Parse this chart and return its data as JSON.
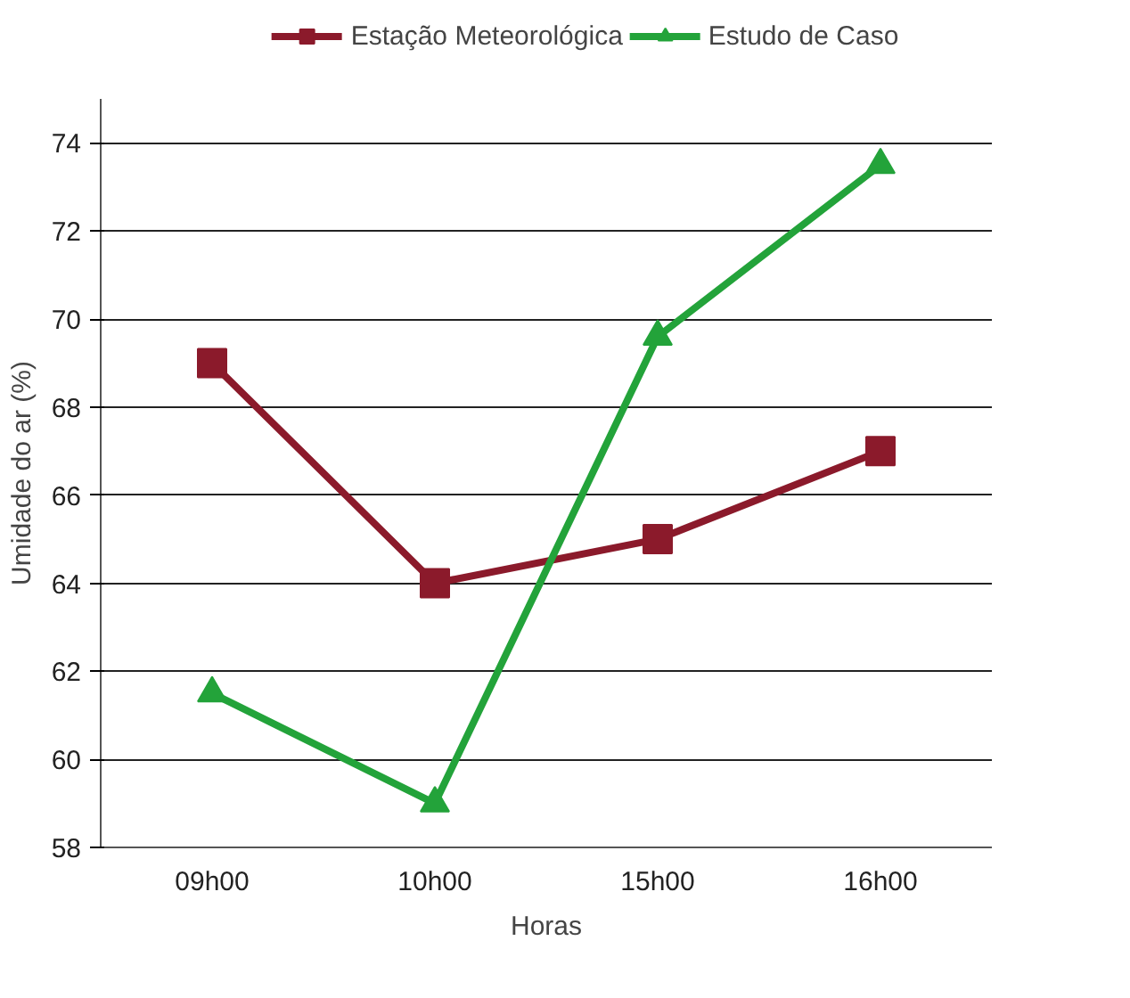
{
  "chart_data": {
    "type": "line",
    "xlabel": "Horas",
    "ylabel": "Umidade do ar (%)",
    "categories": [
      "09h00",
      "10h00",
      "15h00",
      "16h00"
    ],
    "series": [
      {
        "name": "Estação Meteorológica",
        "color": "#8b1a2b",
        "marker": "square",
        "values": [
          69,
          64,
          65,
          67
        ]
      },
      {
        "name": "Estudo de Caso",
        "color": "#23a33a",
        "marker": "triangle",
        "values": [
          61.5,
          59,
          69.6,
          73.5
        ]
      }
    ],
    "ylim": [
      58,
      75
    ],
    "yticks": [
      58,
      60,
      62,
      64,
      66,
      68,
      70,
      72,
      74
    ],
    "grid": "y",
    "legend": "top",
    "line_style": "solid"
  }
}
